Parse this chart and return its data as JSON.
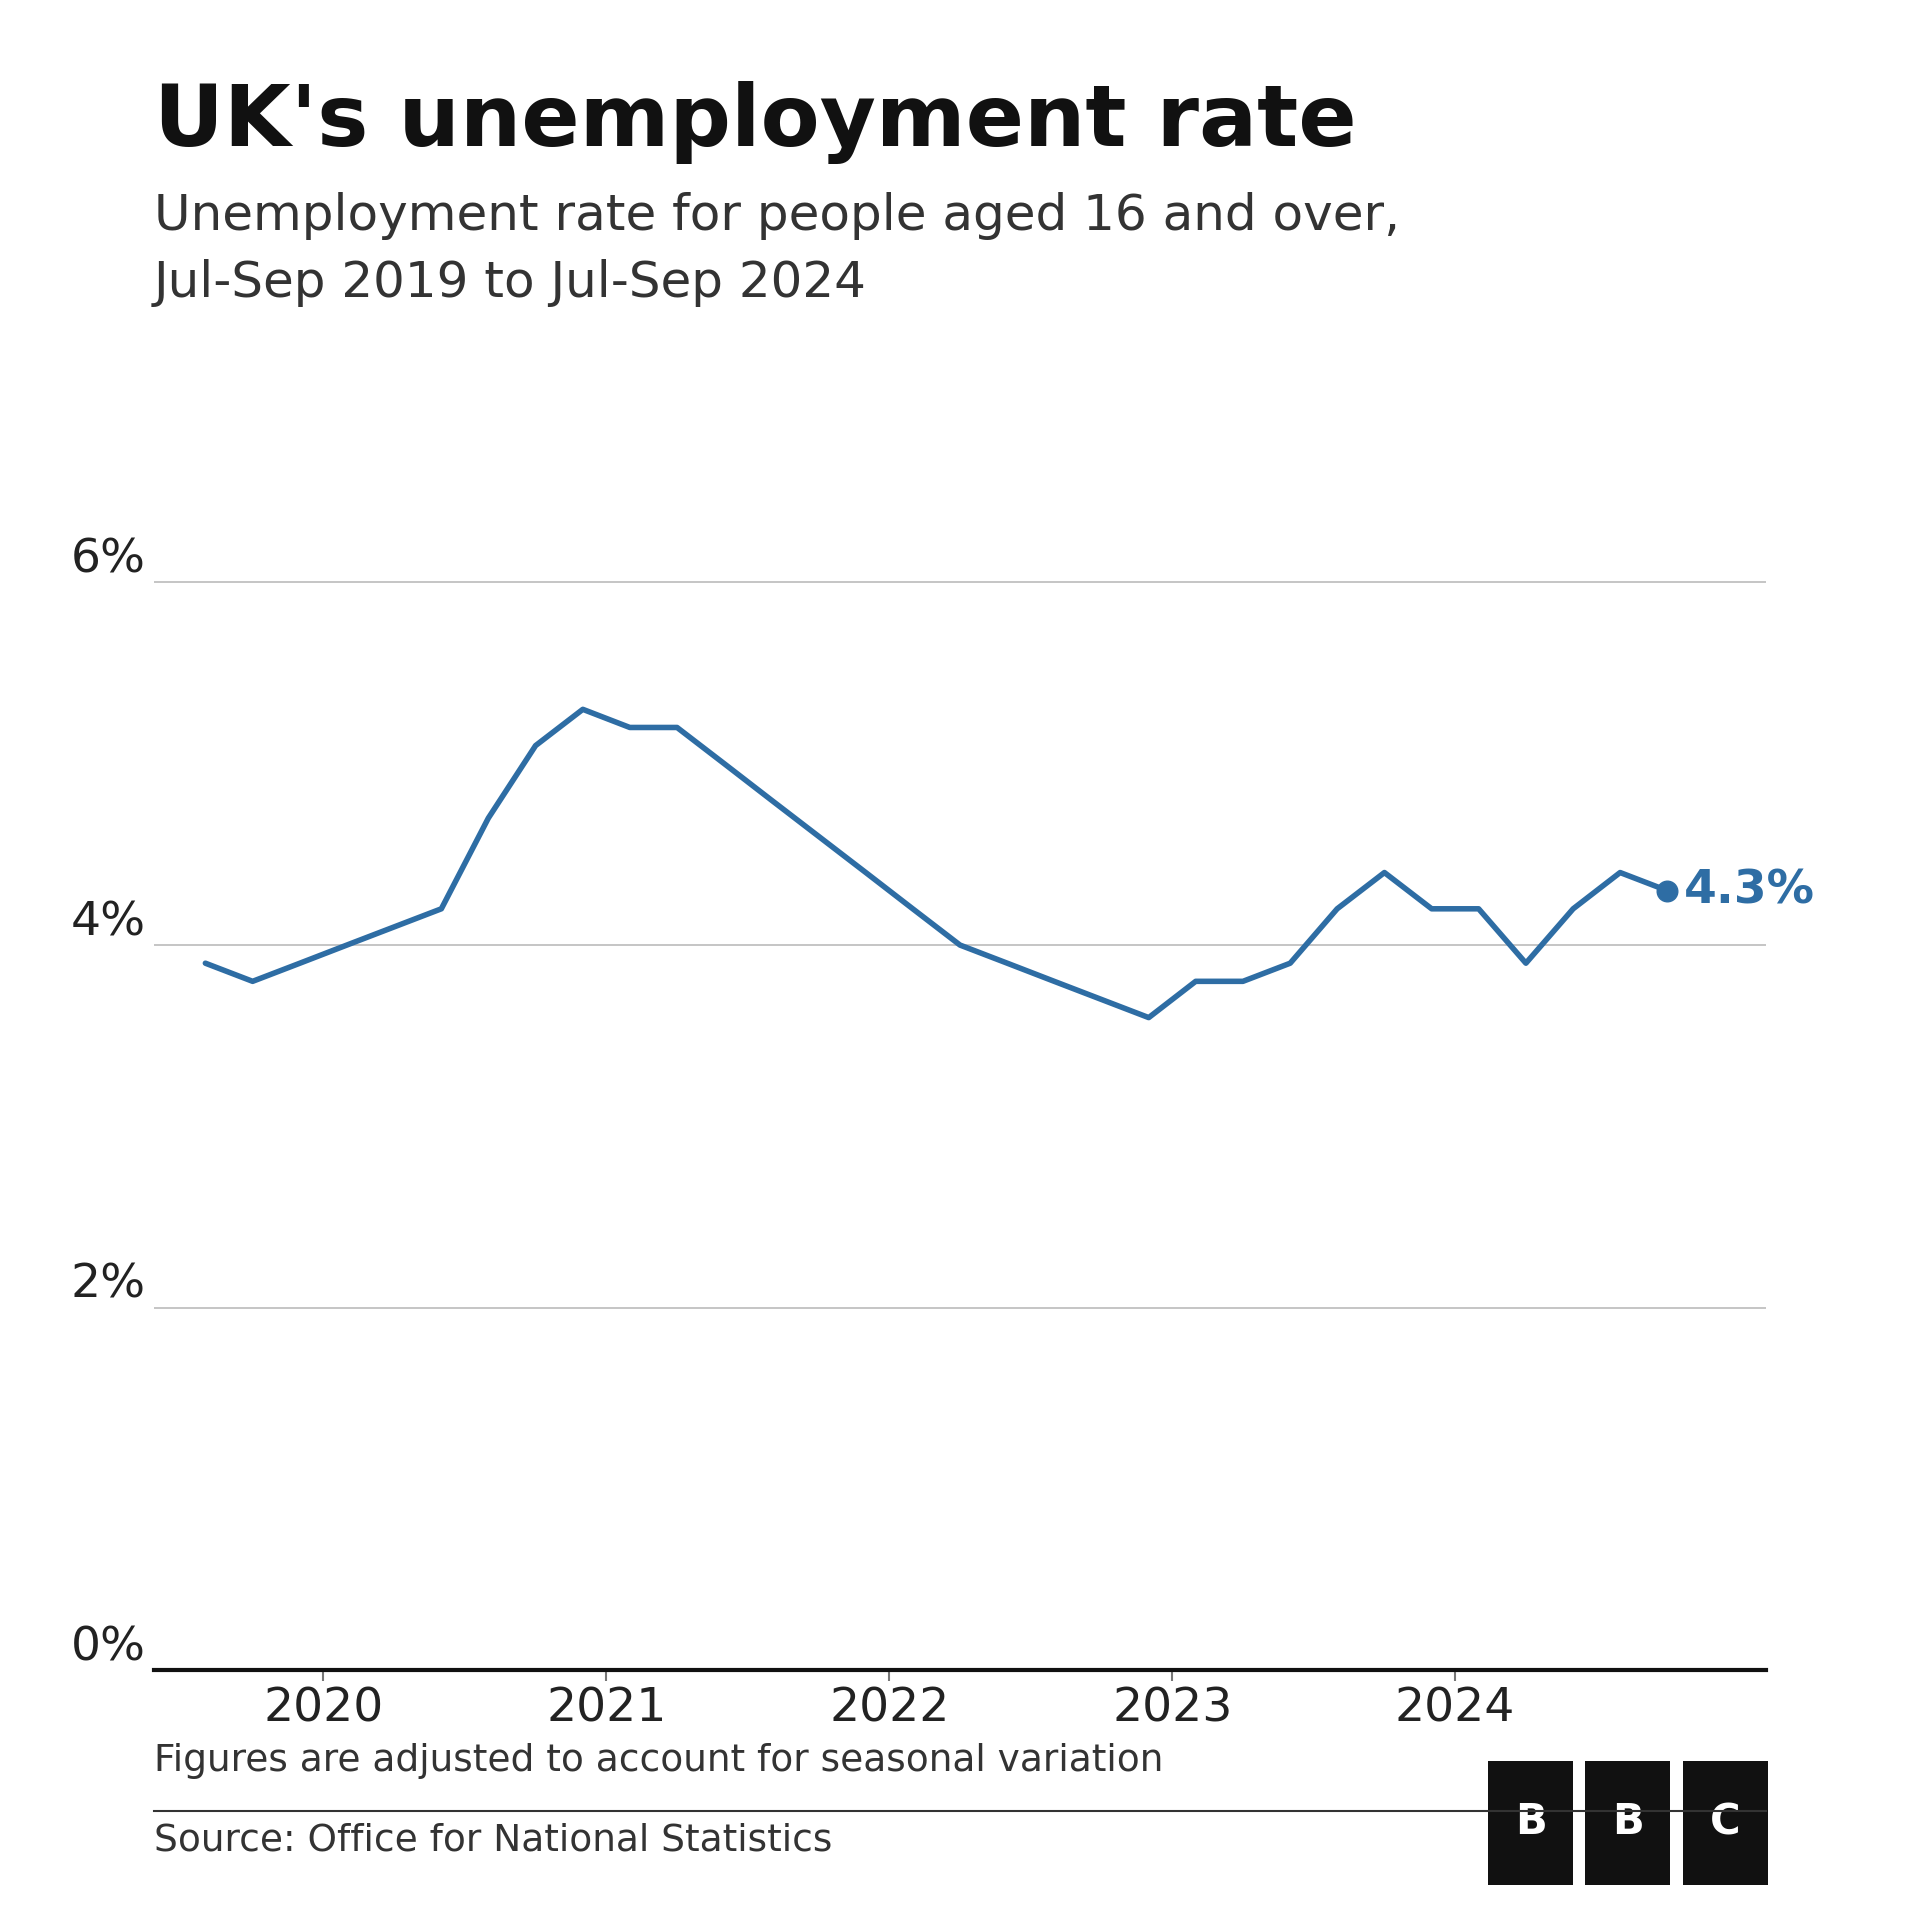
{
  "title": "UK's unemployment rate",
  "subtitle": "Unemployment rate for people aged 16 and over,\nJul-Sep 2019 to Jul-Sep 2024",
  "footnote": "Figures are adjusted to account for seasonal variation",
  "source": "Source: Office for National Statistics",
  "line_color": "#2e6da4",
  "background_color": "#ffffff",
  "yticks": [
    0,
    2,
    4,
    6
  ],
  "ytick_labels": [
    "0%",
    "2%",
    "4%",
    "6%"
  ],
  "ylim": [
    0,
    7.2
  ],
  "last_value_label": "4.3%",
  "x_values": [
    2019.583,
    2019.75,
    2019.917,
    2020.083,
    2020.25,
    2020.417,
    2020.583,
    2020.75,
    2020.917,
    2021.083,
    2021.25,
    2021.417,
    2021.583,
    2021.75,
    2021.917,
    2022.083,
    2022.25,
    2022.417,
    2022.583,
    2022.75,
    2022.917,
    2023.083,
    2023.25,
    2023.417,
    2023.583,
    2023.75,
    2023.917,
    2024.083,
    2024.25,
    2024.417,
    2024.583,
    2024.75
  ],
  "y_values": [
    3.9,
    3.8,
    3.9,
    4.0,
    4.1,
    4.2,
    4.7,
    5.1,
    5.3,
    5.2,
    5.2,
    5.0,
    4.8,
    4.6,
    4.4,
    4.2,
    4.0,
    3.9,
    3.8,
    3.7,
    3.6,
    3.8,
    3.8,
    3.9,
    4.2,
    4.4,
    4.2,
    4.2,
    3.9,
    4.2,
    4.4,
    4.3
  ],
  "xticks": [
    2020,
    2021,
    2022,
    2023,
    2024
  ],
  "xtick_labels": [
    "2020",
    "2021",
    "2022",
    "2023",
    "2024"
  ],
  "xlim_min": 2019.4,
  "xlim_max": 2025.1
}
